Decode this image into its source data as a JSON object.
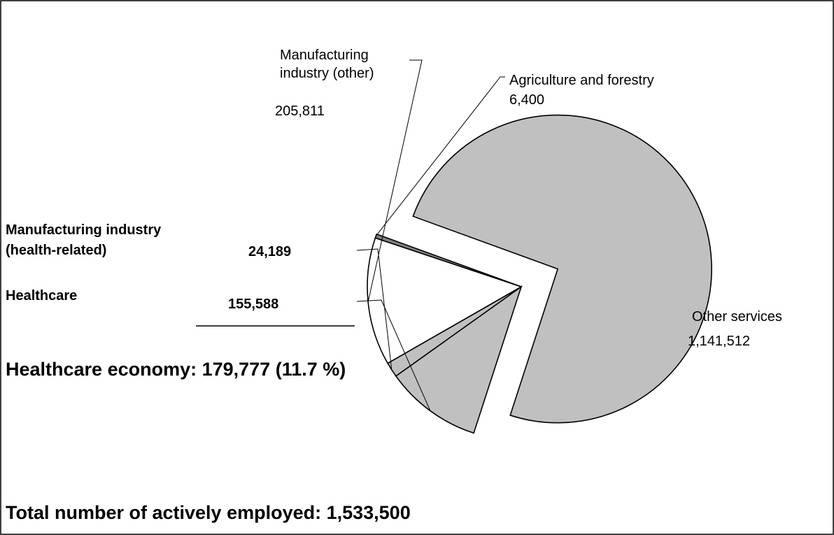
{
  "chart_data": {
    "type": "pie",
    "title": "",
    "slices": [
      {
        "id": "other-services",
        "label": "Other services",
        "value": 1141512,
        "value_label": "1,141,512",
        "color": "#c0c0c0",
        "bold": false
      },
      {
        "id": "healthcare",
        "label": "Healthcare",
        "value": 155588,
        "value_label": "155,588",
        "color": "#c0c0c0",
        "bold": true
      },
      {
        "id": "manufacturing-health",
        "label": "Manufacturing industry (health-related)",
        "label_lines": [
          "Manufacturing industry",
          "(health-related)"
        ],
        "value": 24189,
        "value_label": "24,189",
        "color": "#c0c0c0",
        "bold": true
      },
      {
        "id": "manufacturing-other",
        "label": "Manufacturing industry (other)",
        "label_lines": [
          "Manufacturing",
          "industry (other)"
        ],
        "value": 205811,
        "value_label": "205,811",
        "color": "#ffffff",
        "bold": false
      },
      {
        "id": "agriculture",
        "label": "Agriculture and forestry",
        "value": 6400,
        "value_label": "6,400",
        "color": "#808080",
        "bold": false
      }
    ],
    "annotations": {
      "healthcare_economy": "Healthcare economy: 179,777 (11.7 %)",
      "total": "Total number of actively employed:  1,533,500"
    }
  }
}
